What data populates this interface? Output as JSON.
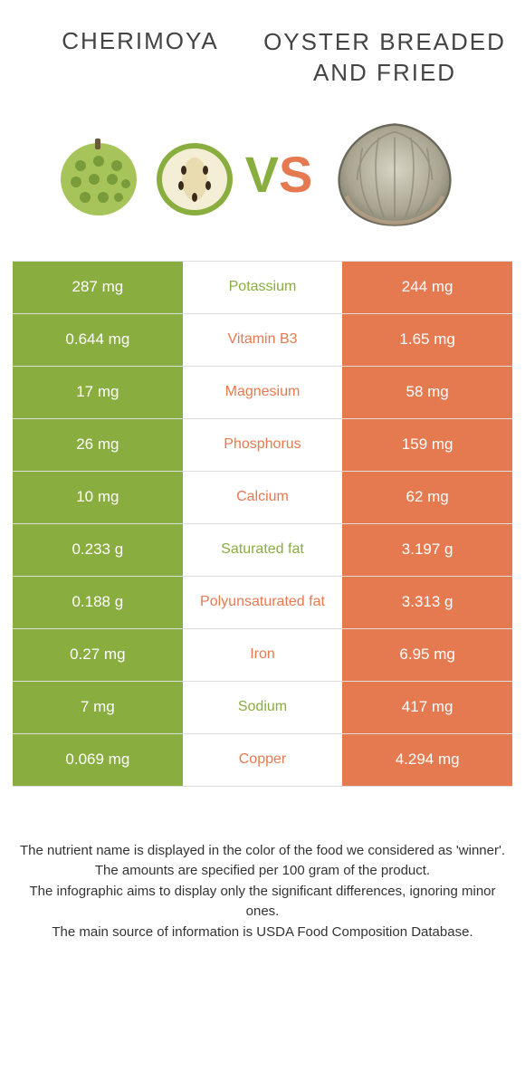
{
  "comparison": {
    "left": {
      "name": "CHERIMOYA",
      "color": "#8aad3f"
    },
    "right": {
      "name": "OYSTER BREADED AND FRIED",
      "color": "#e57a51"
    },
    "vs_colors": {
      "v": "#8aad3f",
      "s": "#e57a51"
    },
    "rows": [
      {
        "nutrient": "Potassium",
        "left": "287 mg",
        "right": "244 mg",
        "winner": "left"
      },
      {
        "nutrient": "Vitamin B3",
        "left": "0.644 mg",
        "right": "1.65 mg",
        "winner": "right"
      },
      {
        "nutrient": "Magnesium",
        "left": "17 mg",
        "right": "58 mg",
        "winner": "right"
      },
      {
        "nutrient": "Phosphorus",
        "left": "26 mg",
        "right": "159 mg",
        "winner": "right"
      },
      {
        "nutrient": "Calcium",
        "left": "10 mg",
        "right": "62 mg",
        "winner": "right"
      },
      {
        "nutrient": "Saturated fat",
        "left": "0.233 g",
        "right": "3.197 g",
        "winner": "left"
      },
      {
        "nutrient": "Polyunsaturated fat",
        "left": "0.188 g",
        "right": "3.313 g",
        "winner": "right"
      },
      {
        "nutrient": "Iron",
        "left": "0.27 mg",
        "right": "6.95 mg",
        "winner": "right"
      },
      {
        "nutrient": "Sodium",
        "left": "7 mg",
        "right": "417 mg",
        "winner": "left"
      },
      {
        "nutrient": "Copper",
        "left": "0.069 mg",
        "right": "4.294 mg",
        "winner": "right"
      }
    ],
    "notes": [
      "The nutrient name is displayed in the color of the food we considered as 'winner'.",
      "The amounts are specified per 100 gram of the product.",
      "The infographic aims to display only the significant differences, ignoring minor ones.",
      "The main source of information is USDA Food Composition Database."
    ],
    "title_fontsize": 26,
    "cell_fontsize": 17,
    "background_color": "#ffffff",
    "border_color": "#dddddd"
  }
}
